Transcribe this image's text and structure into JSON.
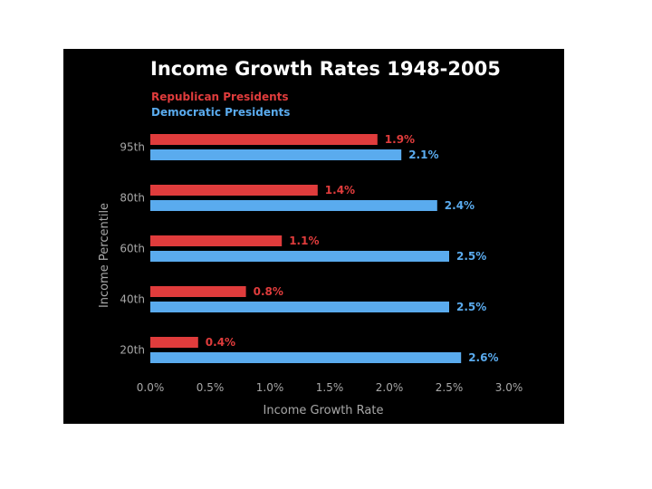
{
  "chart_data": {
    "type": "bar",
    "orientation": "horizontal",
    "title": "Income Growth Rates 1948-2005",
    "xlabel": "Income Growth Rate",
    "ylabel": "Income Percentile",
    "categories": [
      "95th",
      "80th",
      "60th",
      "40th",
      "20th"
    ],
    "series": [
      {
        "name": "Republican Presidents",
        "color": "#e03c3c",
        "values": [
          1.9,
          1.4,
          1.1,
          0.8,
          0.4
        ],
        "labels": [
          "1.9%",
          "1.4%",
          "1.1%",
          "0.8%",
          "0.4%"
        ]
      },
      {
        "name": "Democratic Presidents",
        "color": "#5aabee",
        "values": [
          2.1,
          2.4,
          2.5,
          2.5,
          2.6
        ],
        "labels": [
          "2.1%",
          "2.4%",
          "2.5%",
          "2.5%",
          "2.6%"
        ]
      }
    ],
    "xlim": [
      0,
      3.0
    ],
    "xticks": [
      0.0,
      0.5,
      1.0,
      1.5,
      2.0,
      2.5,
      3.0
    ],
    "xtick_labels": [
      "0.0%",
      "0.5%",
      "1.0%",
      "1.5%",
      "2.0%",
      "2.5%",
      "3.0%"
    ],
    "grid": false,
    "legend_position": "top-left",
    "background": "#000000"
  }
}
